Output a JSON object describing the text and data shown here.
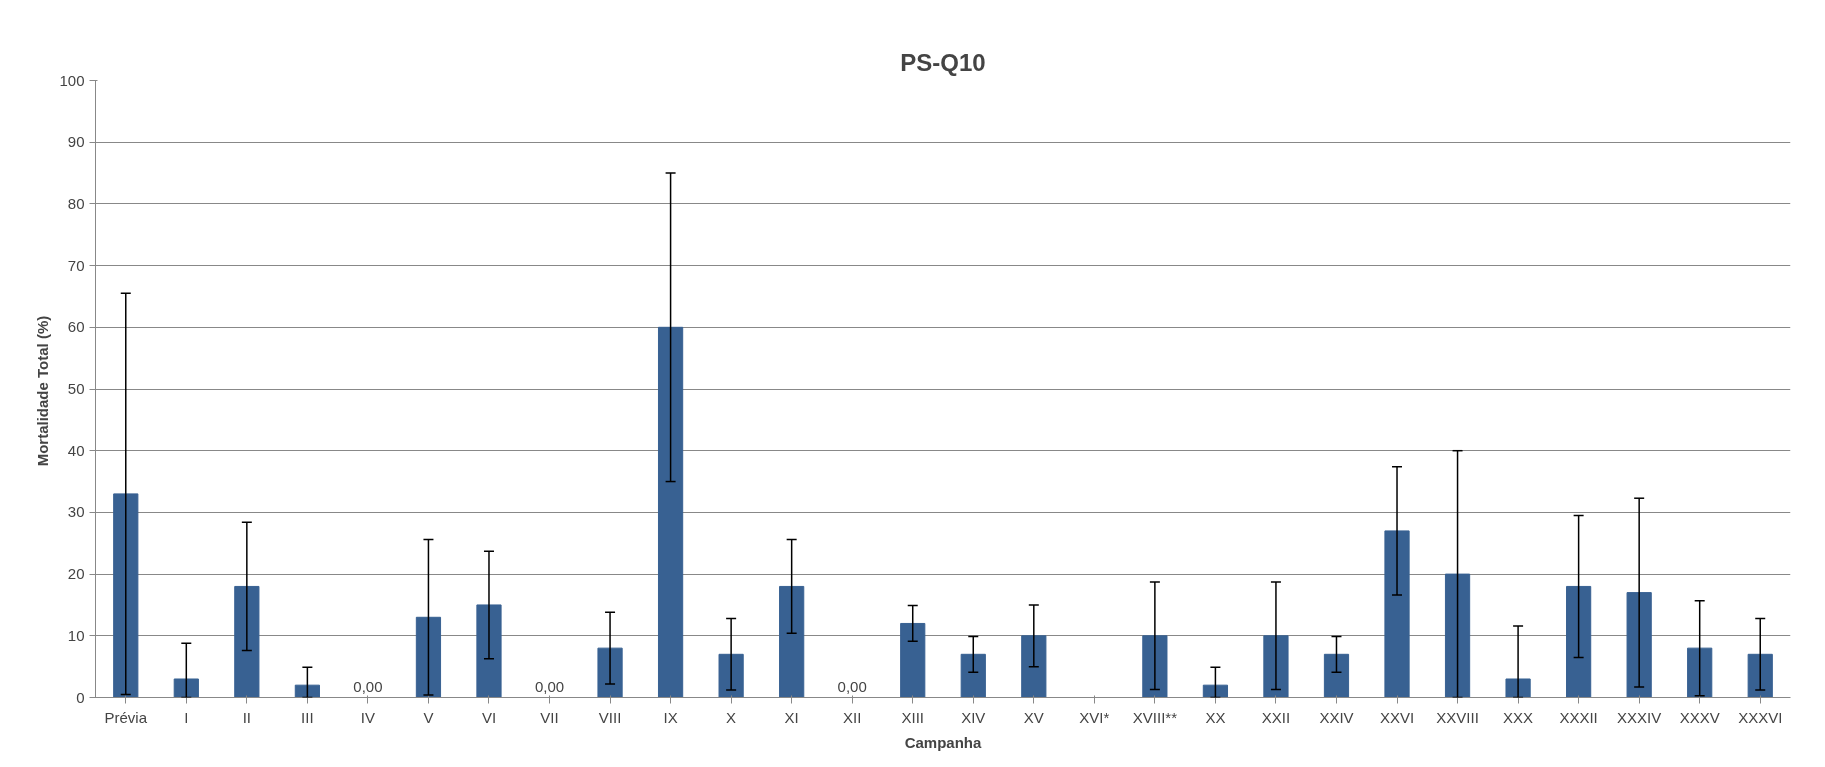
{
  "chart_data": {
    "type": "bar",
    "title": "PS-Q10",
    "xlabel": "Campanha",
    "ylabel": "Mortalidade Total  (%)",
    "categories": [
      "Prévia",
      "I",
      "II",
      "III",
      "IV",
      "V",
      "VI",
      "VII",
      "VIII",
      "IX",
      "X",
      "XI",
      "XII",
      "XIII",
      "XIV",
      "XV",
      "XVI*",
      "XVIII**",
      "XX",
      "XXII",
      "XXIV",
      "XXVI",
      "XXVIII",
      "XXX",
      "XXXII",
      "XXXIV",
      "XXXV",
      "XXXVI"
    ],
    "values": [
      33,
      3,
      18,
      2,
      0,
      13,
      15,
      0,
      8,
      60,
      7,
      18,
      0,
      12,
      7,
      10,
      0,
      10,
      2,
      10,
      7,
      27,
      20,
      3,
      18,
      17,
      8,
      7
    ],
    "errors": [
      [
        0.5,
        65.5
      ],
      [
        0,
        8.8
      ],
      [
        7.6,
        28.4
      ],
      [
        0,
        4.9
      ],
      null,
      [
        0.4,
        25.6
      ],
      [
        6.3,
        23.7
      ],
      null,
      [
        2.2,
        13.8
      ],
      [
        35,
        85
      ],
      [
        1.2,
        12.8
      ],
      [
        10.4,
        25.6
      ],
      null,
      [
        9.1,
        14.9
      ],
      [
        4.1,
        9.9
      ],
      [
        5,
        15
      ],
      null,
      [
        1.3,
        18.7
      ],
      [
        0,
        4.9
      ],
      [
        1.3,
        18.7
      ],
      [
        4.1,
        9.9
      ],
      [
        16.6,
        37.4
      ],
      [
        0,
        40
      ],
      [
        0,
        11.6
      ],
      [
        6.5,
        29.5
      ],
      [
        1.7,
        32.3
      ],
      [
        0.3,
        15.7
      ],
      [
        1.2,
        12.8
      ]
    ],
    "value_labels": [
      null,
      null,
      null,
      null,
      "0,00",
      null,
      null,
      "0,00",
      null,
      null,
      null,
      null,
      "0,00",
      null,
      null,
      null,
      null,
      null,
      null,
      null,
      null,
      null,
      null,
      null,
      null,
      null,
      null,
      null
    ],
    "color": "#386192",
    "ylim": [
      0,
      100
    ],
    "yticks": [
      0,
      10,
      20,
      30,
      40,
      50,
      60,
      70,
      80,
      90,
      100
    ],
    "grid": "y"
  }
}
